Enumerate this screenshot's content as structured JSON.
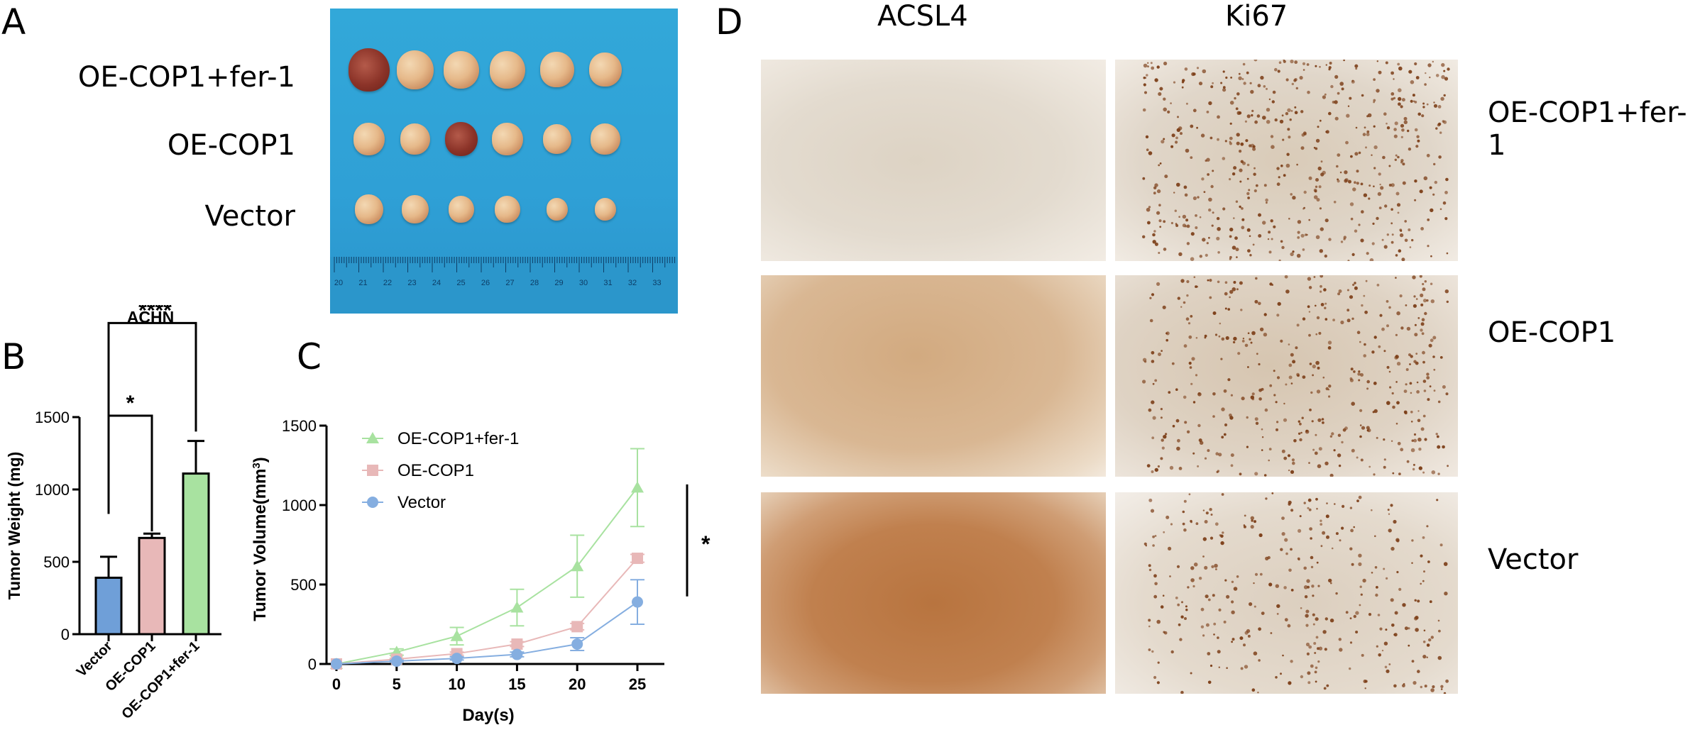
{
  "panel_letters": {
    "a": "A",
    "b": "B",
    "c": "C",
    "d": "D"
  },
  "panel_a": {
    "row_labels": [
      "OE-COP1+fer-1",
      "OE-COP1",
      "Vector"
    ],
    "ruler_ticks": [
      "20",
      "21",
      "22",
      "23",
      "24",
      "25",
      "26",
      "27",
      "28",
      "29",
      "30",
      "31",
      "32",
      "33"
    ]
  },
  "panel_d": {
    "column_labels": [
      "ACSL4",
      "Ki67"
    ],
    "row_labels": [
      "OE-COP1+fer-1",
      "OE-COP1",
      "Vector"
    ]
  },
  "chart_data": [
    {
      "type": "bar",
      "title": "ACHN",
      "ylabel": "Tumor Weight (mg)",
      "xlabel": "",
      "categories": [
        "Vector",
        "OE-COP1",
        "OE-COP1+fer-1"
      ],
      "values": [
        390,
        665,
        1110
      ],
      "errors": [
        145,
        30,
        225
      ],
      "colors": [
        "#6f9fd8",
        "#e8b8b8",
        "#a8e2a0"
      ],
      "ylim": [
        0,
        1500
      ],
      "yticks": [
        "0",
        "500",
        "1000",
        "1500"
      ],
      "significance": [
        {
          "from": "Vector",
          "to": "OE-COP1",
          "label": "*"
        },
        {
          "from": "Vector",
          "to": "OE-COP1+fer-1",
          "label": "****"
        }
      ]
    },
    {
      "type": "line",
      "xlabel": "Day(s)",
      "ylabel": "Tumor Volume(mm",
      "ylabel_superscript": "3",
      "ylabel_suffix": ")",
      "x": [
        0,
        5,
        10,
        15,
        20,
        25
      ],
      "xticks": [
        "0",
        "5",
        "10",
        "15",
        "20",
        "25"
      ],
      "ylim": [
        0,
        1500
      ],
      "yticks": [
        "0",
        "500",
        "1000",
        "1500"
      ],
      "series": [
        {
          "name": "OE-COP1+fer-1",
          "values": [
            0,
            75,
            175,
            355,
            615,
            1110
          ],
          "errors": [
            0,
            20,
            55,
            115,
            195,
            245
          ],
          "color": "#a8e2a0",
          "marker": "triangle"
        },
        {
          "name": "OE-COP1",
          "values": [
            0,
            30,
            65,
            125,
            235,
            665
          ],
          "errors": [
            0,
            5,
            10,
            15,
            20,
            25
          ],
          "color": "#e8b8b8",
          "marker": "square"
        },
        {
          "name": "Vector",
          "values": [
            0,
            18,
            35,
            60,
            125,
            390
          ],
          "errors": [
            0,
            5,
            10,
            15,
            40,
            140
          ],
          "color": "#85aee0",
          "marker": "circle"
        }
      ],
      "significance_label": "*"
    }
  ]
}
